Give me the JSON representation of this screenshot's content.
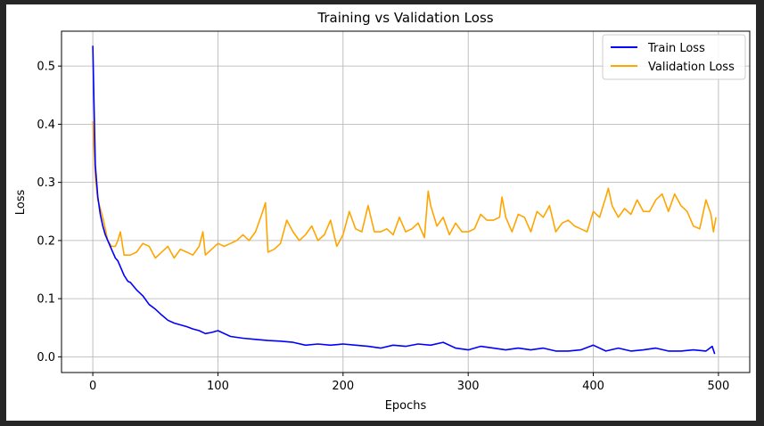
{
  "chart_data": {
    "type": "line",
    "title": "Training vs Validation Loss",
    "xlabel": "Epochs",
    "ylabel": "Loss",
    "xlim": [
      -25,
      525
    ],
    "ylim": [
      -0.027,
      0.56
    ],
    "xticks": [
      0,
      100,
      200,
      300,
      400,
      500
    ],
    "yticks": [
      0.0,
      0.1,
      0.2,
      0.3,
      0.4,
      0.5
    ],
    "xtick_labels": [
      "0",
      "100",
      "200",
      "300",
      "400",
      "500"
    ],
    "ytick_labels": [
      "0.0",
      "0.1",
      "0.2",
      "0.3",
      "0.4",
      "0.5"
    ],
    "grid": true,
    "legend_position": "top-right",
    "series": [
      {
        "name": "Train Loss",
        "color": "#0000ff",
        "x": [
          0,
          2,
          4,
          6,
          8,
          10,
          12,
          15,
          18,
          20,
          25,
          28,
          30,
          35,
          40,
          45,
          50,
          55,
          60,
          65,
          70,
          75,
          80,
          85,
          90,
          95,
          100,
          110,
          120,
          130,
          140,
          150,
          160,
          170,
          180,
          190,
          200,
          210,
          220,
          230,
          240,
          250,
          260,
          270,
          280,
          290,
          300,
          310,
          320,
          330,
          340,
          350,
          360,
          370,
          380,
          390,
          400,
          410,
          420,
          430,
          440,
          450,
          460,
          470,
          480,
          490,
          495,
          497
        ],
        "y": [
          0.535,
          0.33,
          0.275,
          0.245,
          0.225,
          0.21,
          0.2,
          0.185,
          0.17,
          0.165,
          0.14,
          0.13,
          0.128,
          0.115,
          0.105,
          0.09,
          0.082,
          0.072,
          0.063,
          0.058,
          0.055,
          0.052,
          0.048,
          0.045,
          0.04,
          0.042,
          0.045,
          0.035,
          0.032,
          0.03,
          0.028,
          0.027,
          0.025,
          0.02,
          0.022,
          0.02,
          0.022,
          0.02,
          0.018,
          0.015,
          0.02,
          0.018,
          0.022,
          0.02,
          0.025,
          0.015,
          0.012,
          0.018,
          0.015,
          0.012,
          0.015,
          0.012,
          0.015,
          0.01,
          0.01,
          0.012,
          0.02,
          0.01,
          0.015,
          0.01,
          0.012,
          0.015,
          0.01,
          0.01,
          0.012,
          0.01,
          0.018,
          0.005
        ]
      },
      {
        "name": "Validation Loss",
        "color": "#ffa500",
        "x": [
          0,
          2,
          4,
          6,
          8,
          10,
          12,
          15,
          18,
          20,
          22,
          25,
          30,
          35,
          40,
          45,
          50,
          55,
          60,
          65,
          70,
          75,
          80,
          85,
          88,
          90,
          95,
          100,
          105,
          110,
          115,
          120,
          125,
          130,
          135,
          138,
          140,
          145,
          150,
          155,
          160,
          165,
          170,
          175,
          180,
          185,
          190,
          195,
          200,
          205,
          210,
          215,
          220,
          225,
          230,
          235,
          240,
          245,
          250,
          255,
          260,
          265,
          268,
          270,
          275,
          280,
          285,
          290,
          295,
          300,
          305,
          310,
          315,
          320,
          325,
          327,
          330,
          335,
          340,
          345,
          350,
          355,
          360,
          365,
          370,
          375,
          380,
          385,
          390,
          395,
          400,
          405,
          410,
          412,
          415,
          420,
          425,
          430,
          435,
          440,
          445,
          450,
          455,
          460,
          465,
          470,
          475,
          480,
          485,
          490,
          494,
          496,
          498
        ],
        "y": [
          0.405,
          0.31,
          0.27,
          0.255,
          0.24,
          0.22,
          0.2,
          0.19,
          0.19,
          0.2,
          0.215,
          0.175,
          0.175,
          0.18,
          0.195,
          0.19,
          0.17,
          0.18,
          0.19,
          0.17,
          0.185,
          0.18,
          0.175,
          0.19,
          0.215,
          0.175,
          0.185,
          0.195,
          0.19,
          0.195,
          0.2,
          0.21,
          0.2,
          0.215,
          0.245,
          0.265,
          0.18,
          0.185,
          0.195,
          0.235,
          0.215,
          0.2,
          0.21,
          0.225,
          0.2,
          0.21,
          0.235,
          0.19,
          0.21,
          0.25,
          0.22,
          0.215,
          0.26,
          0.215,
          0.215,
          0.22,
          0.21,
          0.24,
          0.215,
          0.22,
          0.23,
          0.205,
          0.285,
          0.26,
          0.225,
          0.24,
          0.21,
          0.23,
          0.215,
          0.215,
          0.22,
          0.245,
          0.235,
          0.235,
          0.24,
          0.275,
          0.24,
          0.215,
          0.245,
          0.24,
          0.215,
          0.25,
          0.24,
          0.26,
          0.215,
          0.23,
          0.235,
          0.225,
          0.22,
          0.215,
          0.25,
          0.24,
          0.275,
          0.29,
          0.26,
          0.24,
          0.255,
          0.245,
          0.27,
          0.25,
          0.25,
          0.27,
          0.28,
          0.25,
          0.28,
          0.26,
          0.25,
          0.225,
          0.22,
          0.27,
          0.245,
          0.215,
          0.24
        ]
      }
    ]
  }
}
